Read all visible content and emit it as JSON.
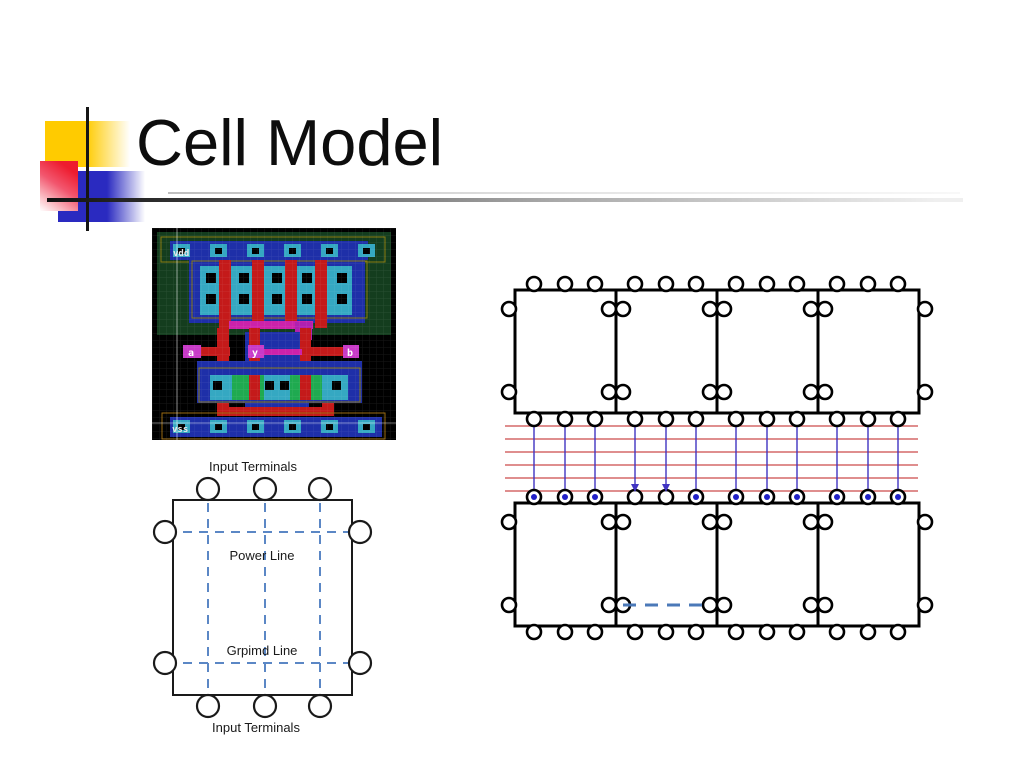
{
  "slide": {
    "title": "Cell Model",
    "background_color": "#ffffff"
  },
  "decoration": {
    "colors": {
      "yellow": "#ffcb00",
      "red": "#ee1b2e",
      "blue": "#2a2ac0",
      "rule_dark": "#151515"
    }
  },
  "layout_image": {
    "labels": {
      "power_rail": "vdd",
      "input_a": "a",
      "output_y": "y",
      "input_b": "b",
      "ground_rail": "vss"
    },
    "colors": {
      "background": "#000000",
      "nwell_green": "#143d1e",
      "metal_blue": "#1e2fa8",
      "active_teal": "#35a8c2",
      "poly_red": "#c41a1a",
      "bus_pink": "#cc22aa",
      "outline_olive": "#8a7a10"
    }
  },
  "cell_model_diagram": {
    "top_label": "Input Terminals",
    "power_line_label": "Power Line",
    "ground_line_label": "Grpimd Line",
    "bottom_label": "Input Terminals",
    "dashed_line_color": "#5b87c5"
  },
  "cell_array_diagram": {
    "rows": 2,
    "columns": 4,
    "terminals_per_cell_edge": 3,
    "channel_track_count": 6,
    "channel_track_color": "#cc4a4a",
    "net_line_color": "#4034c2",
    "connected_dot_color": "#2020c8",
    "dashed_net_color": "#4b79b8",
    "arrow_net_indices": [
      3,
      4
    ]
  }
}
